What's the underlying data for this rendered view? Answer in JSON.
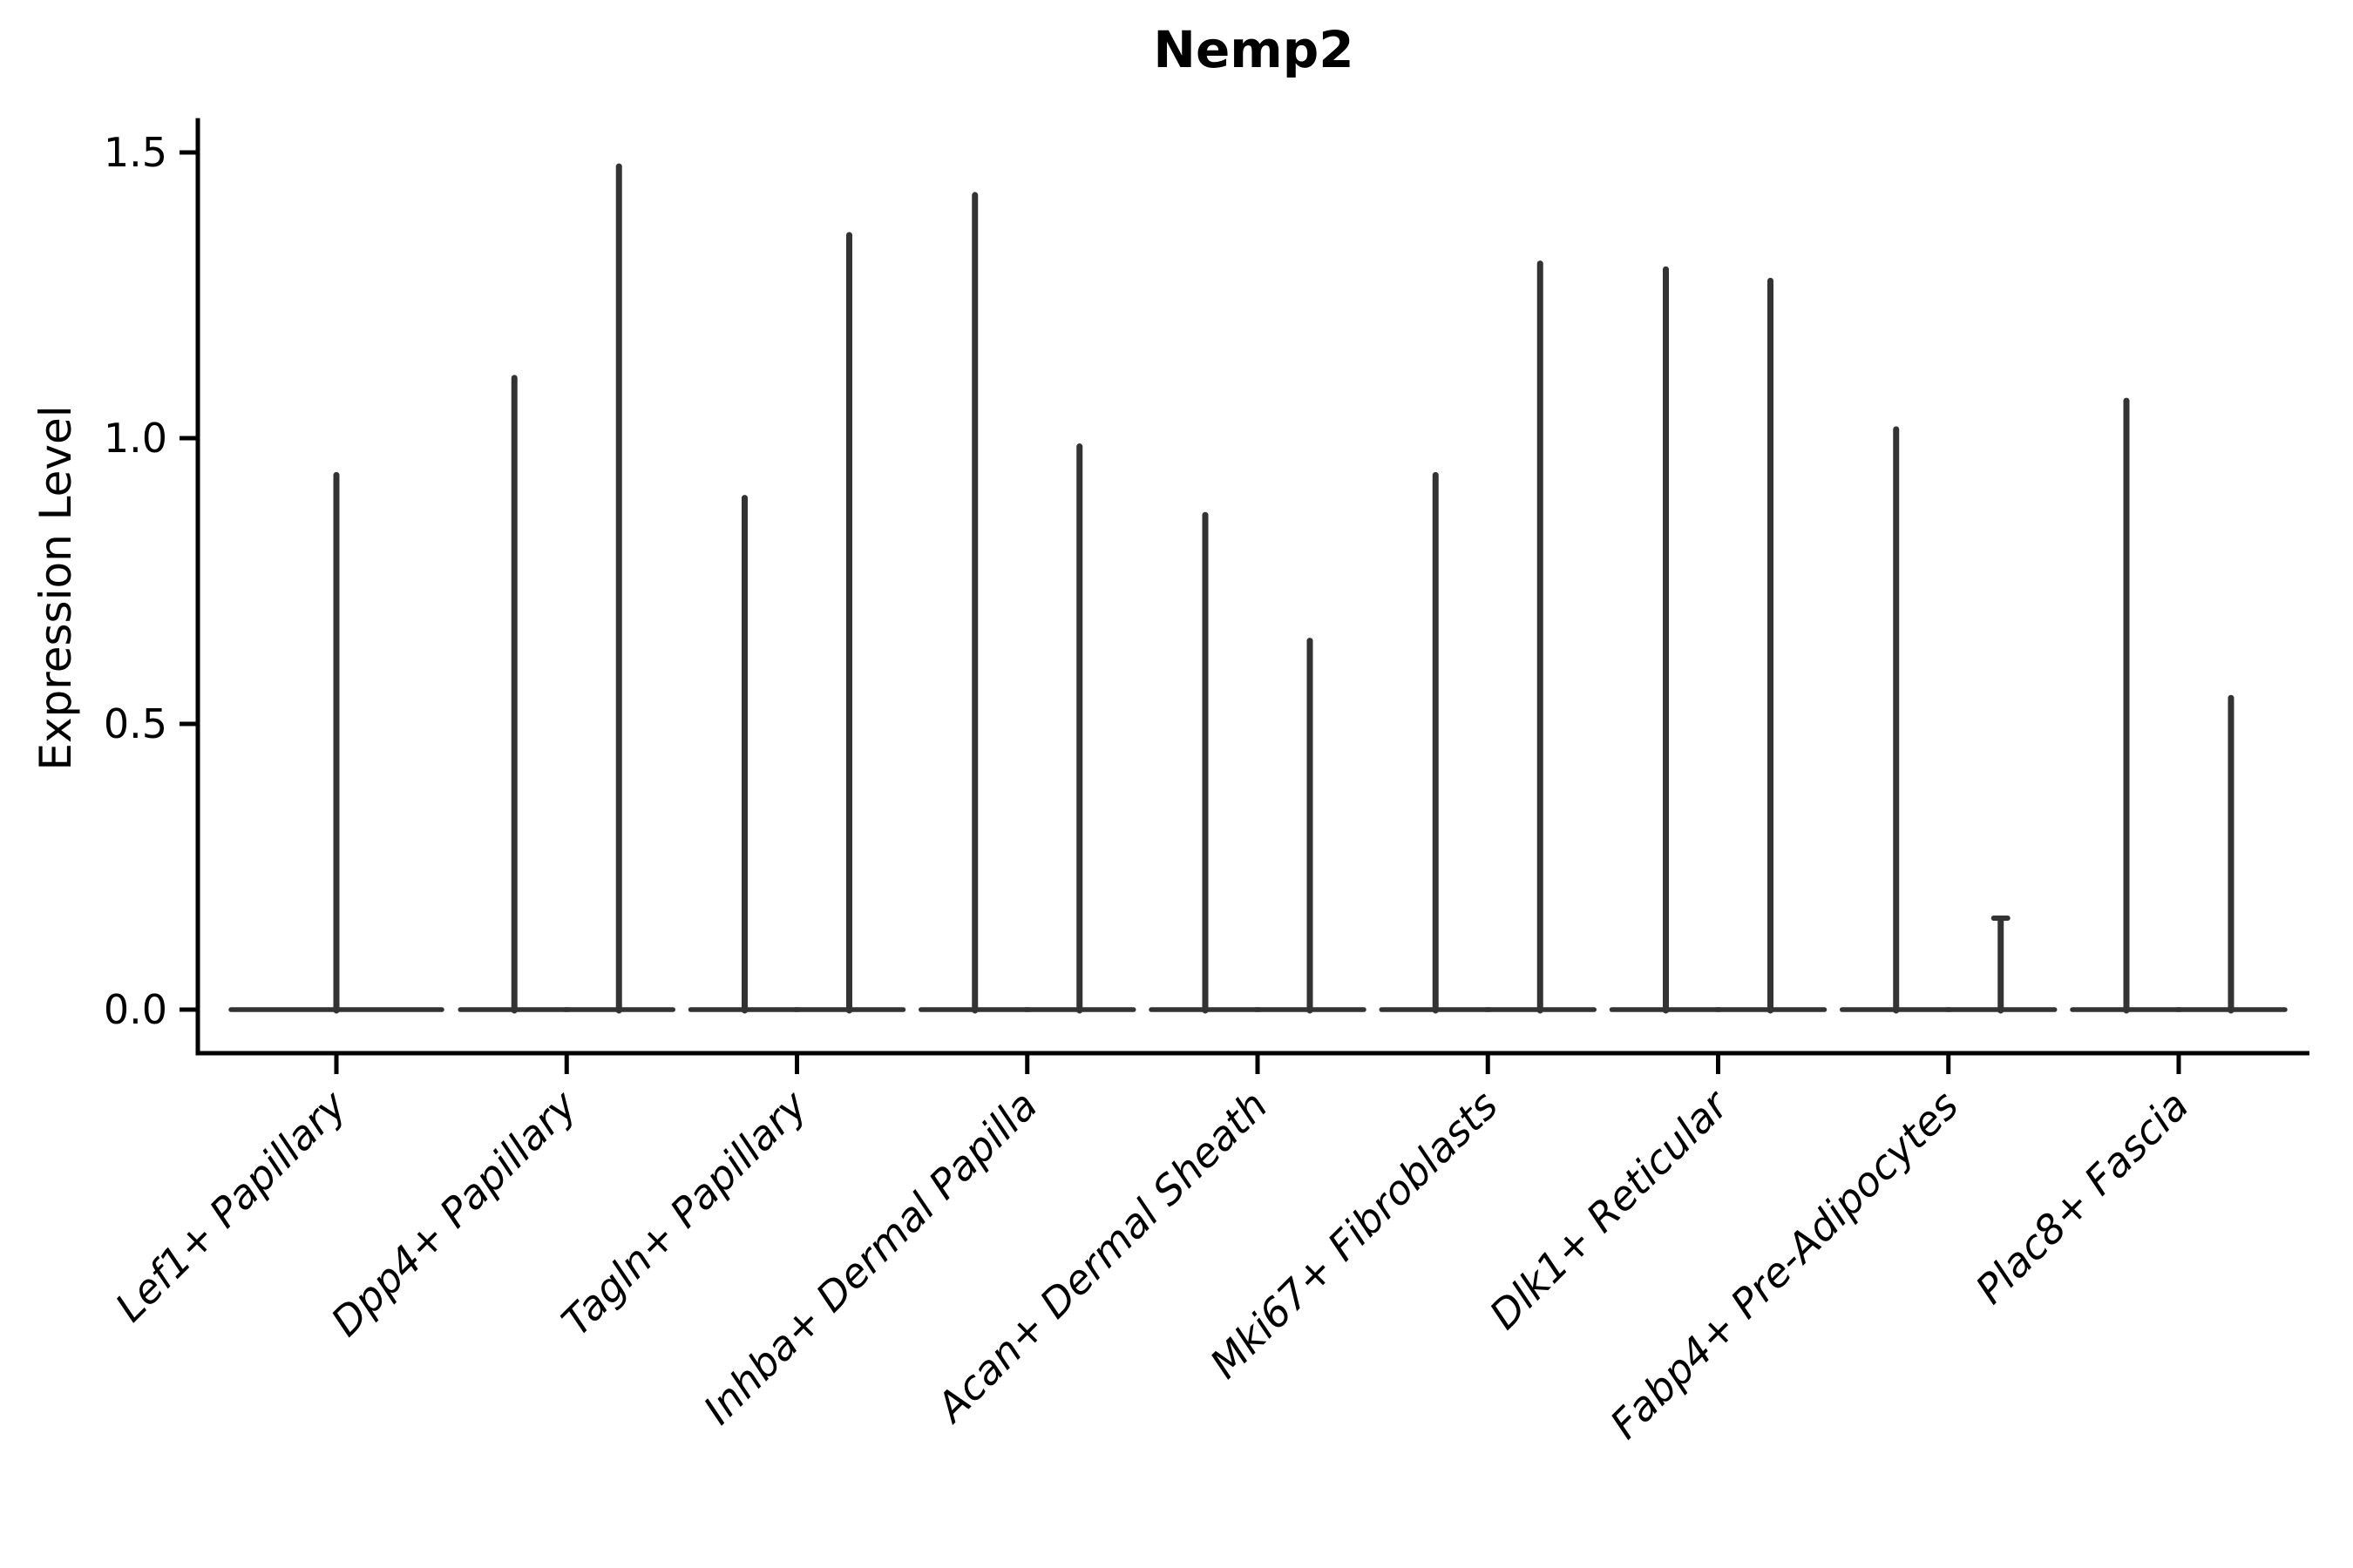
{
  "figure": {
    "title": "Nemp2",
    "ylabel": "Expression Level"
  },
  "chart_data": {
    "type": "violin",
    "title": "Nemp2",
    "xlabel": "",
    "ylabel": "Expression Level",
    "ytick_labels": [
      "0.0",
      "0.5",
      "1.0",
      "1.5"
    ],
    "ytick_values": [
      0.0,
      0.5,
      1.0,
      1.5
    ],
    "ylim": [
      -0.08,
      1.56
    ],
    "grid": false,
    "legend": "none",
    "categories": [
      "Lef1+ Papillary",
      "Dpp4+ Papillary",
      "Tagln+ Papillary",
      "Inhba+ Dermal Papilla",
      "Acan+ Dermal Sheath",
      "Mki67+ Fibroblasts",
      "Dlk1+ Reticular",
      "Fabp4+ Pre-Adipocytes",
      "Plac8+ Fascia"
    ],
    "series": [
      {
        "category": "Lef1+ Papillary",
        "violins": [
          {
            "position": "center",
            "max_expression": 0.94
          }
        ]
      },
      {
        "category": "Dpp4+ Papillary",
        "violins": [
          {
            "position": "left",
            "max_expression": 1.11
          },
          {
            "position": "right",
            "max_expression": 1.48
          }
        ]
      },
      {
        "category": "Tagln+ Papillary",
        "violins": [
          {
            "position": "left",
            "max_expression": 0.9
          },
          {
            "position": "right",
            "max_expression": 1.36
          }
        ]
      },
      {
        "category": "Inhba+ Dermal Papilla",
        "violins": [
          {
            "position": "left",
            "max_expression": 1.43
          },
          {
            "position": "right",
            "max_expression": 0.99
          }
        ]
      },
      {
        "category": "Acan+ Dermal Sheath",
        "violins": [
          {
            "position": "left",
            "max_expression": 0.87
          },
          {
            "position": "right",
            "max_expression": 0.65
          }
        ]
      },
      {
        "category": "Mki67+ Fibroblasts",
        "violins": [
          {
            "position": "left",
            "max_expression": 0.94
          },
          {
            "position": "right",
            "max_expression": 1.31
          }
        ]
      },
      {
        "category": "Dlk1+ Reticular",
        "violins": [
          {
            "position": "left",
            "max_expression": 1.3
          },
          {
            "position": "right",
            "max_expression": 1.28
          }
        ]
      },
      {
        "category": "Fabp4+ Pre-Adipocytes",
        "violins": [
          {
            "position": "left",
            "max_expression": 1.02
          },
          {
            "position": "right",
            "max_expression": 0.16
          }
        ]
      },
      {
        "category": "Plac8+ Fascia",
        "violins": [
          {
            "position": "left",
            "max_expression": 1.07
          },
          {
            "position": "right",
            "max_expression": 0.55
          }
        ]
      }
    ],
    "style": {
      "violin_color": "#333333",
      "axis_color": "#000000",
      "text_color": "#000000",
      "background": "#ffffff"
    }
  }
}
